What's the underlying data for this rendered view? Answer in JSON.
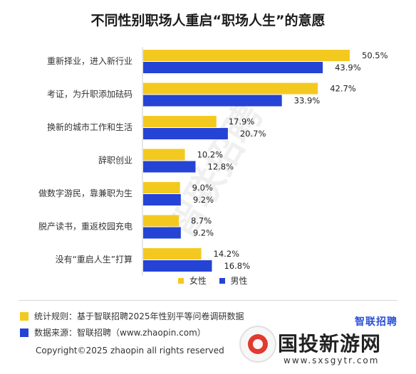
{
  "chart_data": {
    "type": "bar",
    "orientation": "horizontal",
    "title": "不同性别职场人重启“职场人生”的意愿",
    "categories": [
      "重新择业，进入新行业",
      "考证，为升职添加砝码",
      "换新的城市工作和生活",
      "辞职创业",
      "做数字游民，靠兼职为生",
      "脱产读书，重返校园充电",
      "没有“重启人生”打算"
    ],
    "series": [
      {
        "name": "女性",
        "color": "#f4c91f",
        "values": [
          50.5,
          42.7,
          17.9,
          10.2,
          9.0,
          8.7,
          14.2
        ],
        "labels": [
          "50.5%",
          "42.7%",
          "17.9%",
          "10.2%",
          "9.0%",
          "8.7%",
          "14.2%"
        ]
      },
      {
        "name": "男性",
        "color": "#2543d4",
        "values": [
          43.9,
          33.9,
          20.7,
          12.8,
          9.2,
          9.2,
          16.8
        ],
        "labels": [
          "43.9%",
          "33.9%",
          "20.7%",
          "12.8%",
          "9.2%",
          "9.2%",
          "16.8%"
        ]
      }
    ],
    "xlim": [
      0,
      50.5
    ],
    "grid": false,
    "legend_position": "bottom-right"
  },
  "watermark_center": "智联招聘",
  "footer": {
    "note_label": "统计规则：基于智联招聘2025年性别平等问卷调研数据",
    "source_label": "数据来源：智联招聘（www.zhaopin.com）",
    "copyright": "Copyright©2025 zhaopin all rights reserved",
    "brand_logo": "智联招聘",
    "note_color": "#f4c91f",
    "source_color": "#2543d4"
  },
  "site_watermark": {
    "name": "国投新游网",
    "url": "www.sxsgytr.com"
  }
}
